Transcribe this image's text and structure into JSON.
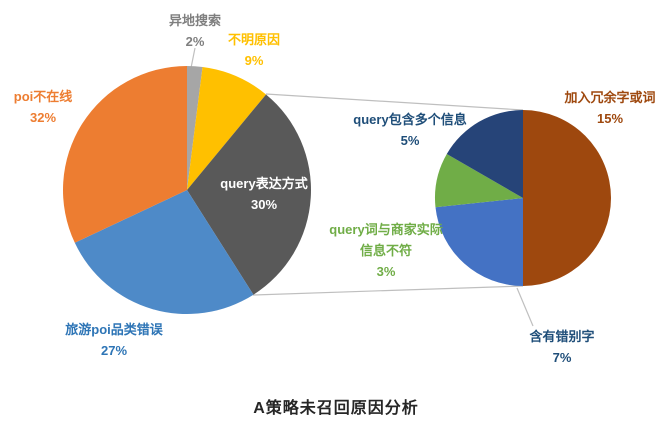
{
  "chart_data": {
    "type": "pie-of-pie",
    "title": "A策略未召回原因分析",
    "main_pie": {
      "slices": [
        {
          "label": "异地搜索",
          "value": 2,
          "pct": "2%",
          "color": "#A6A6A6",
          "label_color": "#7F7F7F"
        },
        {
          "label": "不明原因",
          "value": 9,
          "pct": "9%",
          "color": "#FFC000",
          "label_color": "#FFC000"
        },
        {
          "label": "query表达方式",
          "value": 30,
          "pct": "30%",
          "color": "#595959",
          "label_color": "#FFFFFF"
        },
        {
          "label": "旅游poi品类错误",
          "value": 27,
          "pct": "27%",
          "color": "#4E8AC8",
          "label_color": "#2E75B6"
        },
        {
          "label": "poi不在线",
          "value": 32,
          "pct": "32%",
          "color": "#ED7D31",
          "label_color": "#ED7D31"
        }
      ]
    },
    "secondary_pie": {
      "slices": [
        {
          "label": "加入冗余字或词",
          "value": 15,
          "pct": "15%",
          "color": "#9E480E",
          "label_color": "#9E480E"
        },
        {
          "label": "含有错别字",
          "value": 7,
          "pct": "7%",
          "color": "#4472C4",
          "label_color": "#1F4E79"
        },
        {
          "label": "query词与商家实际信息不符",
          "label_line1": "query词与商家实际",
          "label_line2": "信息不符",
          "value": 3,
          "pct": "3%",
          "color": "#70AD47",
          "label_color": "#70AD47"
        },
        {
          "label": "query包含多个信息",
          "value": 5,
          "pct": "5%",
          "color": "#264478",
          "label_color": "#1F4E79"
        }
      ]
    }
  }
}
